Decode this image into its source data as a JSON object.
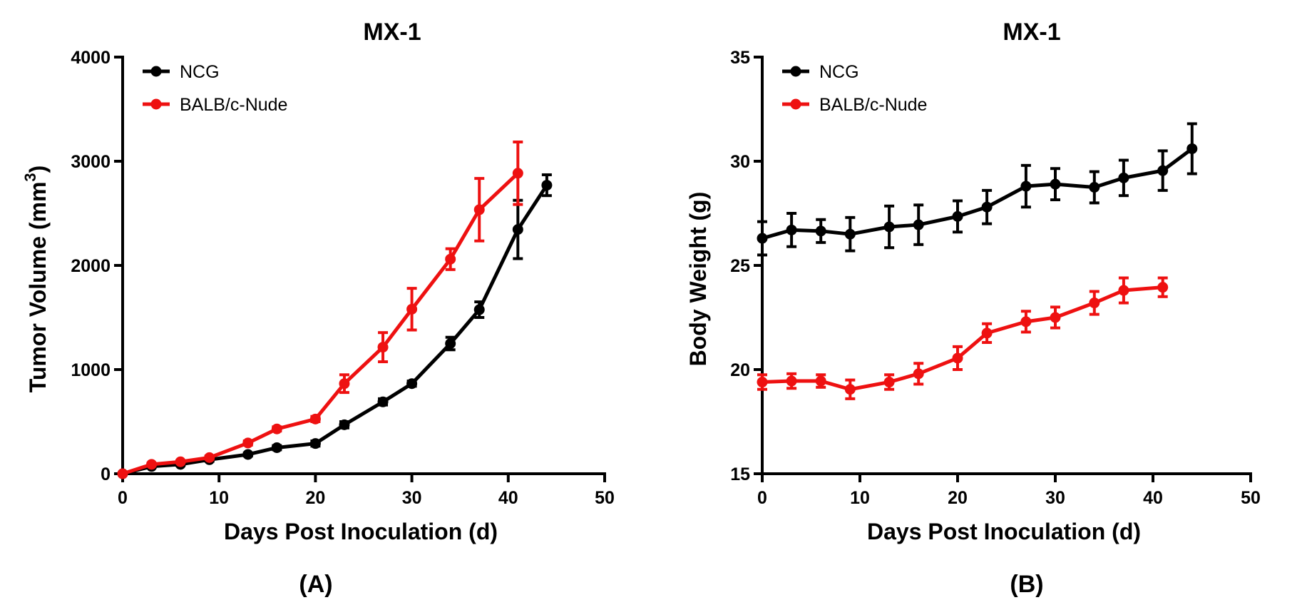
{
  "chart_data": [
    {
      "type": "line",
      "panel_label": "(A)",
      "title": "MX-1",
      "xlabel": "Days Post Inoculation (d)",
      "ylabel": "Tumor Volume (mm",
      "ylabel_sup": "3",
      "ylabel_close": ")",
      "xlim": [
        0,
        50
      ],
      "ylim": [
        0,
        4000
      ],
      "xticks": [
        0,
        10,
        20,
        30,
        40,
        50
      ],
      "yticks": [
        0,
        1000,
        2000,
        3000,
        4000
      ],
      "xtick_labels": [
        "0",
        "10",
        "20",
        "30",
        "40",
        "50"
      ],
      "ytick_labels": [
        "0",
        "1000",
        "2000",
        "3000",
        "4000"
      ],
      "legend_position": "top-left",
      "series": [
        {
          "name": "NCG",
          "color": "#000000",
          "x": [
            0,
            3,
            6,
            9,
            13,
            16,
            20,
            23,
            27,
            30,
            34,
            37,
            41,
            44
          ],
          "y": [
            0,
            70,
            90,
            135,
            185,
            250,
            290,
            470,
            690,
            865,
            1250,
            1575,
            2345,
            2770
          ],
          "err": [
            0,
            10,
            10,
            15,
            15,
            20,
            25,
            30,
            30,
            25,
            60,
            75,
            280,
            100
          ]
        },
        {
          "name": "BALB/c-Nude",
          "color": "#ee1111",
          "x": [
            0,
            3,
            6,
            9,
            13,
            16,
            20,
            23,
            27,
            30,
            34,
            37,
            41
          ],
          "y": [
            0,
            90,
            115,
            155,
            295,
            430,
            525,
            865,
            1215,
            1580,
            2060,
            2535,
            2885
          ],
          "err": [
            0,
            10,
            10,
            15,
            20,
            20,
            25,
            85,
            140,
            200,
            100,
            300,
            300
          ]
        }
      ]
    },
    {
      "type": "line",
      "panel_label": "(B)",
      "title": "MX-1",
      "xlabel": "Days Post Inoculation (d)",
      "ylabel": "Body Weight (g)",
      "xlim": [
        0,
        50
      ],
      "ylim": [
        15,
        35
      ],
      "xticks": [
        0,
        10,
        20,
        30,
        40,
        50
      ],
      "yticks": [
        15,
        20,
        25,
        30,
        35
      ],
      "xtick_labels": [
        "0",
        "10",
        "20",
        "30",
        "40",
        "50"
      ],
      "ytick_labels": [
        "15",
        "20",
        "25",
        "30",
        "35"
      ],
      "legend_position": "top-left",
      "series": [
        {
          "name": "NCG",
          "color": "#000000",
          "x": [
            0,
            3,
            6,
            9,
            13,
            16,
            20,
            23,
            27,
            30,
            34,
            37,
            41,
            44
          ],
          "y": [
            26.3,
            26.7,
            26.65,
            26.5,
            26.85,
            26.95,
            27.35,
            27.8,
            28.8,
            28.9,
            28.75,
            29.2,
            29.55,
            30.6
          ],
          "err": [
            0.8,
            0.8,
            0.55,
            0.8,
            1.0,
            0.95,
            0.75,
            0.8,
            1.0,
            0.75,
            0.75,
            0.85,
            0.95,
            1.2
          ]
        },
        {
          "name": "BALB/c-Nude",
          "color": "#ee1111",
          "x": [
            0,
            3,
            6,
            9,
            13,
            16,
            20,
            23,
            27,
            30,
            34,
            37,
            41
          ],
          "y": [
            19.4,
            19.45,
            19.45,
            19.05,
            19.4,
            19.8,
            20.55,
            21.75,
            22.3,
            22.5,
            23.2,
            23.8,
            23.95
          ],
          "err": [
            0.35,
            0.35,
            0.3,
            0.45,
            0.35,
            0.5,
            0.55,
            0.45,
            0.5,
            0.5,
            0.55,
            0.6,
            0.45
          ]
        }
      ]
    }
  ]
}
